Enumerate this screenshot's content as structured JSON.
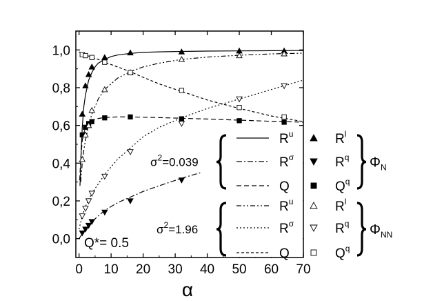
{
  "chart_data": {
    "type": "line",
    "xlabel": "α",
    "ylabel": "",
    "xlim": [
      -1,
      70
    ],
    "ylim": [
      -0.1,
      1.1
    ],
    "x_ticks": [
      0,
      10,
      20,
      30,
      40,
      50,
      60,
      70
    ],
    "x_tick_labels": [
      "0",
      "10",
      "20",
      "30",
      "40",
      "50",
      "60",
      "70"
    ],
    "y_ticks": [
      0.0,
      0.2,
      0.4,
      0.6,
      0.8,
      1.0
    ],
    "y_tick_labels": [
      "0,0",
      "0,2",
      "0,4",
      "0,6",
      "0,8",
      "1,0"
    ],
    "annotation": "Q*= 0.5",
    "groups": [
      {
        "sigma_label": "σ²=0.039",
        "phi_label": "Φ",
        "phi_sub": "N"
      },
      {
        "sigma_label": "σ²=1.96",
        "phi_label": "Φ",
        "phi_sub": "NN"
      }
    ],
    "legend": [
      {
        "curve": "R",
        "curve_sup": "u",
        "marker": "R",
        "marker_sup": "l",
        "line": "solid",
        "symbol": "triangle-up-filled"
      },
      {
        "curve": "R",
        "curve_sup": "σ",
        "marker": "R",
        "marker_sup": "q",
        "line": "dashdot",
        "symbol": "triangle-down-filled"
      },
      {
        "curve": "Q",
        "curve_sup": "",
        "marker": "Q",
        "marker_sup": "q",
        "line": "dashed",
        "symbol": "square-filled"
      },
      {
        "curve": "R",
        "curve_sup": "u",
        "marker": "R",
        "marker_sup": "l",
        "line": "dashdotdot",
        "symbol": "triangle-up-open"
      },
      {
        "curve": "R",
        "curve_sup": "σ",
        "marker": "R",
        "marker_sup": "q",
        "line": "dotted",
        "symbol": "triangle-down-open"
      },
      {
        "curve": "Q",
        "curve_sup": "",
        "marker": "Q",
        "marker_sup": "q",
        "line": "shortdash",
        "symbol": "square-open"
      }
    ],
    "series": [
      {
        "name": "Ru (Φ_N)",
        "line": "solid",
        "x": [
          0.3,
          0.7,
          1,
          1.5,
          2,
          3,
          4,
          5,
          6,
          8,
          10,
          12,
          16,
          20,
          25,
          32,
          40,
          50,
          60,
          70
        ],
        "y": [
          0.28,
          0.48,
          0.59,
          0.7,
          0.76,
          0.84,
          0.88,
          0.91,
          0.93,
          0.95,
          0.965,
          0.973,
          0.982,
          0.987,
          0.99,
          0.992,
          0.994,
          0.995,
          0.996,
          0.997
        ]
      },
      {
        "name": "Rl markers (Φ_N)",
        "symbol": "triangle-up-filled",
        "x": [
          1,
          2,
          3,
          4,
          8,
          16,
          32,
          50,
          64
        ],
        "y": [
          0.66,
          0.81,
          0.87,
          0.91,
          0.96,
          0.985,
          0.99,
          0.995,
          0.995
        ]
      },
      {
        "name": "Rσ (Φ_N)",
        "line": "dashdot",
        "x": [
          0,
          2,
          4,
          8,
          12,
          16,
          20,
          25,
          32,
          38
        ],
        "y": [
          0.0,
          0.05,
          0.09,
          0.15,
          0.19,
          0.22,
          0.25,
          0.28,
          0.32,
          0.35
        ]
      },
      {
        "name": "Rq markers (Φ_N)",
        "symbol": "triangle-down-filled",
        "x": [
          1,
          2,
          3,
          4,
          8,
          16,
          32
        ],
        "y": [
          0.03,
          0.05,
          0.07,
          0.09,
          0.14,
          0.2,
          0.31
        ]
      },
      {
        "name": "Q (Φ_N)",
        "line": "dashed",
        "x": [
          0.2,
          0.5,
          1,
          1.5,
          2,
          3,
          4,
          6,
          8,
          12,
          16,
          24,
          32,
          40,
          50,
          60,
          70
        ],
        "y": [
          0.31,
          0.42,
          0.52,
          0.56,
          0.585,
          0.61,
          0.625,
          0.637,
          0.642,
          0.645,
          0.645,
          0.642,
          0.638,
          0.634,
          0.628,
          0.622,
          0.617
        ]
      },
      {
        "name": "Qq markers (Φ_N)",
        "symbol": "square-filled",
        "x": [
          1,
          2,
          3,
          4,
          8,
          16,
          32,
          50,
          64
        ],
        "y": [
          0.55,
          0.59,
          0.61,
          0.62,
          0.64,
          0.645,
          0.635,
          0.625,
          0.617
        ]
      },
      {
        "name": "Ru (Φ_NN)",
        "line": "dashdotdot",
        "x": [
          0.5,
          1,
          1.5,
          2,
          3,
          4,
          6,
          8,
          12,
          16,
          20,
          25,
          32,
          40,
          50,
          60,
          70
        ],
        "y": [
          0.3,
          0.4,
          0.47,
          0.52,
          0.6,
          0.66,
          0.74,
          0.79,
          0.85,
          0.885,
          0.91,
          0.93,
          0.95,
          0.962,
          0.972,
          0.979,
          0.983
        ]
      },
      {
        "name": "Rl markers (Φ_NN)",
        "symbol": "triangle-up-open",
        "x": [
          1,
          2,
          3,
          4,
          8,
          16,
          32,
          50,
          64
        ],
        "y": [
          0.42,
          0.55,
          0.6,
          0.68,
          0.79,
          0.88,
          0.95,
          0.97,
          0.98
        ]
      },
      {
        "name": "Rσ (Φ_NN)",
        "line": "dotted",
        "x": [
          0,
          1,
          2,
          4,
          6,
          8,
          12,
          16,
          20,
          25,
          32,
          40,
          50,
          60,
          70
        ],
        "y": [
          0.05,
          0.12,
          0.17,
          0.24,
          0.29,
          0.34,
          0.42,
          0.48,
          0.54,
          0.59,
          0.64,
          0.69,
          0.74,
          0.79,
          0.84
        ]
      },
      {
        "name": "Rq markers (Φ_NN)",
        "symbol": "triangle-down-open",
        "x": [
          1,
          2,
          3,
          4,
          8,
          16,
          32,
          50,
          64
        ],
        "y": [
          0.12,
          0.16,
          0.2,
          0.24,
          0.33,
          0.46,
          0.61,
          0.74,
          0.81
        ]
      },
      {
        "name": "Q (Φ_NN)",
        "line": "shortdash",
        "x": [
          0,
          1,
          2,
          4,
          6,
          8,
          12,
          16,
          20,
          25,
          32,
          40,
          50,
          60,
          70
        ],
        "y": [
          0.99,
          0.98,
          0.975,
          0.96,
          0.95,
          0.935,
          0.91,
          0.885,
          0.855,
          0.82,
          0.78,
          0.735,
          0.69,
          0.65,
          0.62
        ]
      },
      {
        "name": "Qq markers (Φ_NN)",
        "symbol": "square-open",
        "x": [
          1,
          2,
          4,
          8,
          16,
          32,
          50,
          64
        ],
        "y": [
          0.975,
          0.97,
          0.96,
          0.935,
          0.88,
          0.785,
          0.695,
          0.645
        ]
      }
    ]
  }
}
